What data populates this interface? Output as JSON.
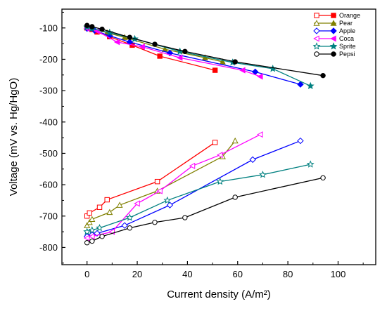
{
  "chart_data": {
    "type": "line",
    "xlabel": "Current density (A/m²)",
    "ylabel": "Voltage (mV vs. Hg/HgO)",
    "xlim": [
      -10,
      115
    ],
    "ylim": [
      -855,
      -40
    ],
    "xticks": [
      0,
      20,
      40,
      60,
      80,
      100
    ],
    "yticks": [
      -100,
      -200,
      -300,
      -400,
      -500,
      -600,
      -700,
      -800
    ],
    "grid": false,
    "legend_position": "top-right",
    "series": [
      {
        "name": "Orange",
        "color": "#ff0000",
        "marker": "square",
        "anode": [
          [
            0,
            -700
          ],
          [
            1,
            -690
          ],
          [
            5,
            -672
          ],
          [
            8,
            -648
          ],
          [
            28,
            -590
          ],
          [
            51,
            -465
          ]
        ],
        "cathode": [
          [
            0,
            -100
          ],
          [
            2,
            -105
          ],
          [
            4,
            -113
          ],
          [
            9,
            -128
          ],
          [
            18,
            -155
          ],
          [
            29,
            -190
          ],
          [
            51,
            -235
          ]
        ]
      },
      {
        "name": "Pear",
        "color": "#808000",
        "marker": "triangle",
        "anode": [
          [
            0,
            -730
          ],
          [
            1,
            -720
          ],
          [
            2,
            -710
          ],
          [
            9,
            -688
          ],
          [
            13,
            -665
          ],
          [
            28,
            -620
          ],
          [
            54,
            -510
          ],
          [
            59,
            -460
          ]
        ],
        "cathode": [
          [
            0,
            -98
          ],
          [
            2,
            -102
          ],
          [
            8,
            -115
          ],
          [
            15,
            -130
          ],
          [
            31,
            -168
          ],
          [
            47,
            -195
          ],
          [
            54,
            -208
          ]
        ]
      },
      {
        "name": "Apple",
        "color": "#0000ff",
        "marker": "diamond",
        "anode": [
          [
            0,
            -765
          ],
          [
            2,
            -760
          ],
          [
            4,
            -755
          ],
          [
            15,
            -730
          ],
          [
            33,
            -665
          ],
          [
            66,
            -520
          ],
          [
            85,
            -460
          ]
        ],
        "cathode": [
          [
            0,
            -102
          ],
          [
            3,
            -108
          ],
          [
            9,
            -125
          ],
          [
            17,
            -145
          ],
          [
            33,
            -180
          ],
          [
            67,
            -240
          ],
          [
            85,
            -280
          ]
        ]
      },
      {
        "name": "Coca",
        "color": "#ff00ff",
        "marker": "triangle-left",
        "anode": [
          [
            0,
            -770
          ],
          [
            2,
            -765
          ],
          [
            10,
            -750
          ],
          [
            20,
            -660
          ],
          [
            29,
            -620
          ],
          [
            42,
            -540
          ],
          [
            53,
            -505
          ],
          [
            69,
            -440
          ]
        ],
        "cathode": [
          [
            0,
            -102
          ],
          [
            4,
            -110
          ],
          [
            12,
            -145
          ],
          [
            22,
            -160
          ],
          [
            37,
            -195
          ],
          [
            62,
            -235
          ],
          [
            69,
            -255
          ]
        ]
      },
      {
        "name": "Sprite",
        "color": "#008080",
        "marker": "star",
        "anode": [
          [
            0,
            -750
          ],
          [
            2,
            -745
          ],
          [
            5,
            -738
          ],
          [
            17,
            -705
          ],
          [
            32,
            -650
          ],
          [
            53,
            -590
          ],
          [
            70,
            -568
          ],
          [
            89,
            -535
          ]
        ],
        "cathode": [
          [
            0,
            -97
          ],
          [
            2,
            -102
          ],
          [
            9,
            -115
          ],
          [
            19,
            -135
          ],
          [
            37,
            -175
          ],
          [
            58,
            -210
          ],
          [
            74,
            -230
          ],
          [
            89,
            -285
          ]
        ]
      },
      {
        "name": "Pepsi",
        "color": "#000000",
        "marker": "circle",
        "anode": [
          [
            0,
            -785
          ],
          [
            2,
            -780
          ],
          [
            6,
            -765
          ],
          [
            17,
            -738
          ],
          [
            27,
            -720
          ],
          [
            39,
            -705
          ],
          [
            59,
            -640
          ],
          [
            94,
            -578
          ]
        ],
        "cathode": [
          [
            0,
            -92
          ],
          [
            2,
            -96
          ],
          [
            6,
            -104
          ],
          [
            17,
            -130
          ],
          [
            27,
            -152
          ],
          [
            39,
            -175
          ],
          [
            59,
            -208
          ],
          [
            94,
            -252
          ]
        ]
      }
    ]
  }
}
